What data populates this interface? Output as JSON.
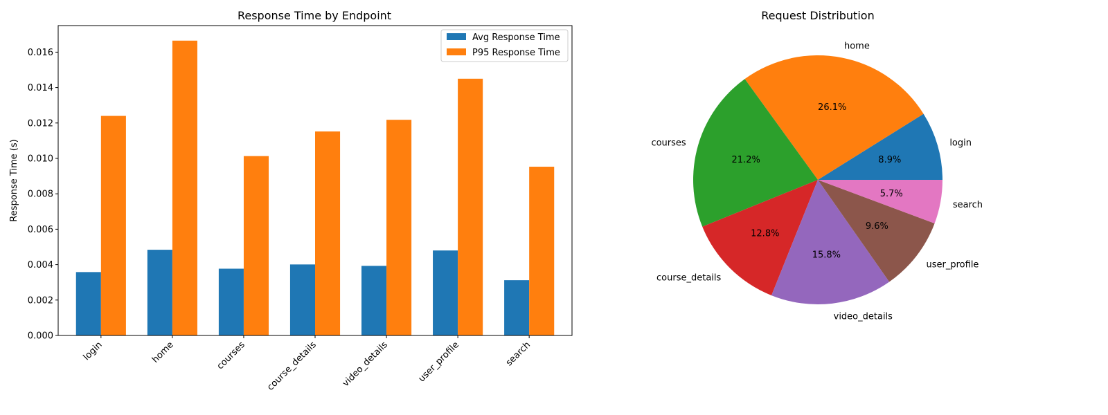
{
  "chart_data": [
    {
      "type": "bar",
      "title": "Response Time by Endpoint",
      "xlabel": "",
      "ylabel": "Response Time (s)",
      "ylim": [
        0,
        0.0175
      ],
      "yticks": [
        "0.000",
        "0.002",
        "0.004",
        "0.006",
        "0.008",
        "0.010",
        "0.012",
        "0.014",
        "0.016"
      ],
      "categories": [
        "login",
        "home",
        "courses",
        "course_details",
        "video_details",
        "user_profile",
        "search"
      ],
      "series": [
        {
          "name": "Avg Response Time",
          "color": "#1f77b4",
          "values": [
            0.00358,
            0.00484,
            0.00377,
            0.00401,
            0.00393,
            0.0048,
            0.00312
          ]
        },
        {
          "name": "P95 Response Time",
          "color": "#ff7f0e",
          "values": [
            0.0124,
            0.01665,
            0.01013,
            0.01152,
            0.01218,
            0.0145,
            0.00953
          ]
        }
      ],
      "legend": "top-right",
      "grid": false
    },
    {
      "type": "pie",
      "title": "Request Distribution",
      "labels": [
        "login",
        "home",
        "courses",
        "course_details",
        "video_details",
        "user_profile",
        "search"
      ],
      "values": [
        8.9,
        26.1,
        21.2,
        12.8,
        15.8,
        9.6,
        5.7
      ],
      "pct_labels": [
        "8.9%",
        "26.1%",
        "21.2%",
        "12.8%",
        "15.8%",
        "9.6%",
        "5.7%"
      ],
      "colors": [
        "#1f77b4",
        "#ff7f0e",
        "#2ca02c",
        "#d62728",
        "#9467bd",
        "#8c564b",
        "#e377c2"
      ]
    }
  ]
}
